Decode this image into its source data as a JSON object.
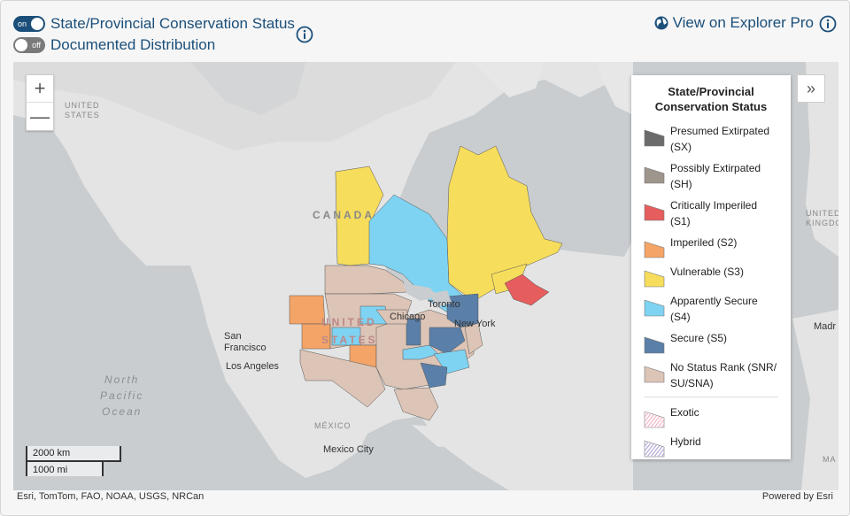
{
  "controls": {
    "conservation_toggle": {
      "state": "on",
      "label": "State/Provincial Conservation Status"
    },
    "distribution_toggle": {
      "state": "off",
      "label": "Documented Distribution"
    },
    "explorer_link": "View on Explorer Pro"
  },
  "map": {
    "labels": {
      "canada": "CANADA",
      "united_states": "UNITED STATES",
      "united_states_small": "UNITED\nSTATES",
      "kingdom": "KINGDOM",
      "united_kingdom": "UNITED",
      "mexico": "MÉXICO",
      "mexico_city": "Mexico City",
      "san_francisco": "San\nFrancisco",
      "los_angeles": "Los Angeles",
      "chicago": "Chicago",
      "toronto": "Toronto",
      "new_york": "New York",
      "madrid": "Madr",
      "ocean": "North\nPacific\nOcean",
      "edge_ma": "MA"
    },
    "scale": {
      "km": "2000 km",
      "mi": "1000 mi"
    },
    "zoom": {
      "in": "+",
      "out": "—"
    }
  },
  "legend": {
    "title": "State/Provincial Conservation Status",
    "items": [
      {
        "label": "Presumed Extirpated (SX)",
        "color": "#6b6b6b"
      },
      {
        "label": "Possibly Extirpated (SH)",
        "color": "#9e958c"
      },
      {
        "label": "Critically Imperiled (S1)",
        "color": "#e65d5d"
      },
      {
        "label": "Imperiled (S2)",
        "color": "#f4a466"
      },
      {
        "label": "Vulnerable (S3)",
        "color": "#f6dd5c"
      },
      {
        "label": "Apparently Secure (S4)",
        "color": "#7fd3f2"
      },
      {
        "label": "Secure (S5)",
        "color": "#5a7fa8"
      },
      {
        "label": "No Status Rank (SNR/ SU/SNA)",
        "color": "#dcc4b6"
      }
    ],
    "extra": [
      {
        "label": "Exotic",
        "color": "#f3b5c5"
      },
      {
        "label": "Hybrid",
        "color": "#b7a9d8"
      }
    ]
  },
  "attribution": {
    "left": "Esri, TomTom, FAO, NOAA, USGS, NRCan",
    "right": "Powered by Esri"
  }
}
